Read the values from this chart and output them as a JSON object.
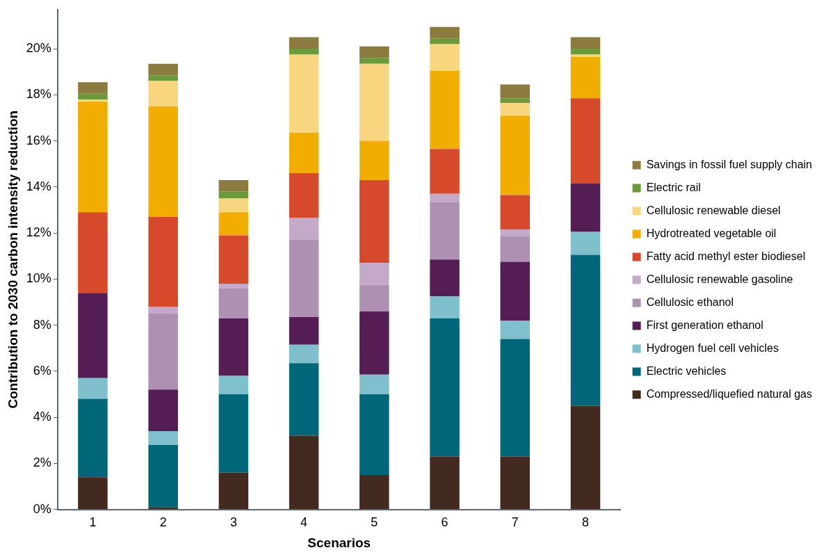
{
  "chart_data": {
    "type": "bar",
    "stacked": true,
    "xlabel": "Scenarios",
    "ylabel": "Contribution to 2030 carbon intensity reduction",
    "categories": [
      "1",
      "2",
      "3",
      "4",
      "5",
      "6",
      "7",
      "8"
    ],
    "ylim": [
      0,
      21.7
    ],
    "yticks": [
      {
        "value": 0,
        "label": "0%"
      },
      {
        "value": 2,
        "label": "2%"
      },
      {
        "value": 4,
        "label": "4%"
      },
      {
        "value": 6,
        "label": "6%"
      },
      {
        "value": 8,
        "label": "8%"
      },
      {
        "value": 10,
        "label": "10%"
      },
      {
        "value": 12,
        "label": "12%"
      },
      {
        "value": 14,
        "label": "14%"
      },
      {
        "value": 16,
        "label": "16%"
      },
      {
        "value": 18,
        "label": "18%"
      },
      {
        "value": 20,
        "label": "20%"
      }
    ],
    "grid": false,
    "legend": "right",
    "series": [
      {
        "name": "Compressed/liquefied natural gas",
        "color": "#432a21",
        "values": [
          1.4,
          0.1,
          1.6,
          3.2,
          1.5,
          2.3,
          2.3,
          4.5
        ]
      },
      {
        "name": "Electric vehicles",
        "color": "#006778",
        "values": [
          3.4,
          2.7,
          3.4,
          3.15,
          3.5,
          6.0,
          5.1,
          6.55
        ]
      },
      {
        "name": "Hydrogen fuel cell vehicles",
        "color": "#7fc0cc",
        "values": [
          0.9,
          0.6,
          0.8,
          0.8,
          0.85,
          0.95,
          0.8,
          1.0
        ]
      },
      {
        "name": "First generation ethanol",
        "color": "#541d54",
        "values": [
          3.7,
          1.8,
          2.5,
          1.2,
          2.75,
          1.6,
          2.55,
          2.1
        ]
      },
      {
        "name": "Cellulosic ethanol",
        "color": "#ae90b2",
        "values": [
          0,
          3.3,
          1.3,
          3.35,
          1.15,
          2.5,
          1.1,
          0
        ]
      },
      {
        "name": "Cellulosic renewable gasoline",
        "color": "#c4aac8",
        "values": [
          0,
          0.3,
          0.2,
          0.95,
          0.95,
          0.35,
          0.3,
          0
        ]
      },
      {
        "name": "Fatty acid methyl ester biodiesel",
        "color": "#d6492a",
        "values": [
          3.5,
          3.9,
          2.1,
          1.95,
          3.6,
          1.95,
          1.5,
          3.7
        ]
      },
      {
        "name": "Hydrotreated vegetable oil",
        "color": "#f2ae00",
        "values": [
          4.8,
          4.8,
          1.0,
          1.75,
          1.7,
          3.4,
          3.45,
          1.8
        ]
      },
      {
        "name": "Cellulosic renewable diesel",
        "color": "#f8d680",
        "values": [
          0.1,
          1.1,
          0.6,
          3.4,
          3.35,
          1.15,
          0.55,
          0.1
        ]
      },
      {
        "name": "Electric rail",
        "color": "#6a9a3a",
        "values": [
          0.25,
          0.25,
          0.3,
          0.25,
          0.25,
          0.25,
          0.2,
          0.25
        ]
      },
      {
        "name": "Savings in fossil fuel supply chain",
        "color": "#8b7b3e",
        "values": [
          0.5,
          0.5,
          0.5,
          0.5,
          0.5,
          0.5,
          0.6,
          0.5
        ]
      }
    ]
  }
}
